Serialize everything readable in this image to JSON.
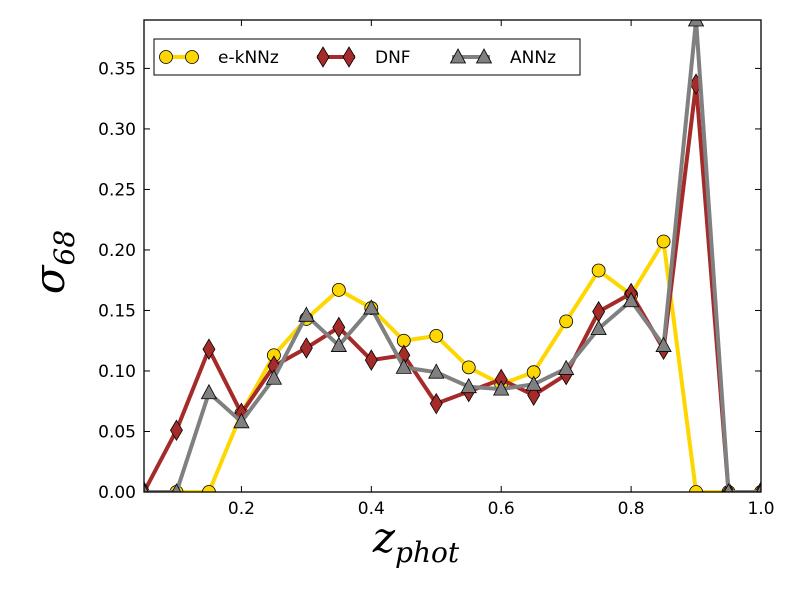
{
  "chart_data": {
    "type": "line",
    "title": "",
    "xlabel": "z",
    "xlabel_sub": "phot",
    "ylabel": "σ",
    "ylabel_sub": "68",
    "xlim": [
      0.05,
      1.0
    ],
    "ylim": [
      0.0,
      0.39
    ],
    "x_ticks": [
      0.2,
      0.4,
      0.6,
      0.8,
      1.0
    ],
    "x_tick_labels": [
      "0.2",
      "0.4",
      "0.6",
      "0.8",
      "1.0"
    ],
    "y_ticks": [
      0.0,
      0.05,
      0.1,
      0.15,
      0.2,
      0.25,
      0.3,
      0.35
    ],
    "y_tick_labels": [
      "0.00",
      "0.05",
      "0.10",
      "0.15",
      "0.20",
      "0.25",
      "0.30",
      "0.35"
    ],
    "legend_position": "top-left",
    "x": [
      0.05,
      0.1,
      0.15,
      0.2,
      0.25,
      0.3,
      0.35,
      0.4,
      0.45,
      0.5,
      0.55,
      0.6,
      0.65,
      0.7,
      0.75,
      0.8,
      0.85,
      0.9,
      0.95,
      1.0
    ],
    "series": [
      {
        "name": "e-kNNz",
        "color": "#FFD700",
        "marker": "circle",
        "values": [
          null,
          0.0,
          0.0,
          0.065,
          0.113,
          0.143,
          0.167,
          0.152,
          0.125,
          0.129,
          0.103,
          0.089,
          0.099,
          0.141,
          0.183,
          0.163,
          0.207,
          0.0,
          0.0,
          0.0
        ]
      },
      {
        "name": "DNF",
        "color": "#A52A2A",
        "marker": "diamond",
        "values": [
          0.0,
          0.051,
          0.118,
          0.065,
          0.104,
          0.119,
          0.136,
          0.109,
          0.113,
          0.073,
          0.083,
          0.093,
          0.08,
          0.097,
          0.149,
          0.164,
          0.118,
          0.337,
          0.0,
          0.0
        ]
      },
      {
        "name": "ANNz",
        "color": "#808080",
        "marker": "triangle",
        "values": [
          0.0,
          0.0,
          0.082,
          0.058,
          0.094,
          0.146,
          0.121,
          0.152,
          0.103,
          0.099,
          0.087,
          0.085,
          0.089,
          0.102,
          0.135,
          0.158,
          0.121,
          0.39,
          0.0,
          0.0
        ]
      }
    ]
  }
}
